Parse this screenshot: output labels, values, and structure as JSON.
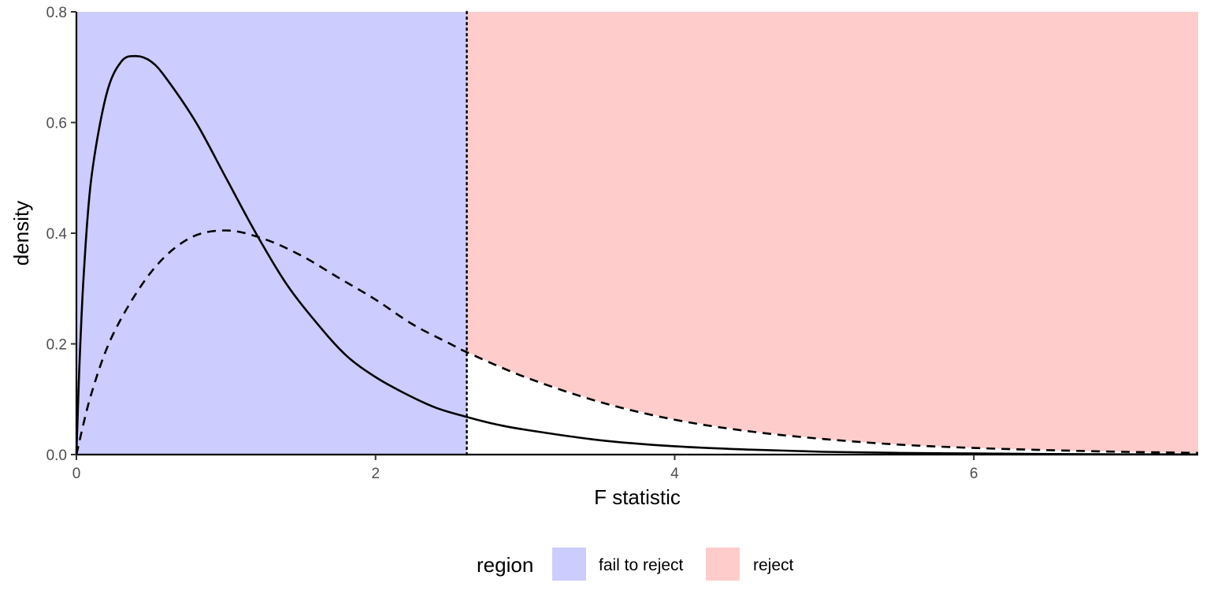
{
  "chart_data": {
    "type": "area",
    "xlabel": "F statistic",
    "ylabel": "density",
    "xlim": [
      0,
      7.5
    ],
    "ylim": [
      0,
      0.8
    ],
    "x_ticks": [
      0,
      2,
      4,
      6
    ],
    "y_ticks": [
      0.0,
      0.2,
      0.4,
      0.6,
      0.8
    ],
    "x_tick_labels": [
      "0",
      "2",
      "4",
      "6"
    ],
    "y_tick_labels": [
      "0.0",
      "0.2",
      "0.4",
      "0.6",
      "0.8"
    ],
    "grid": false,
    "critical_value": 2.61,
    "regions": [
      {
        "label": "fail to reject",
        "from": 0,
        "to": 2.61,
        "color": "#ccccff"
      },
      {
        "label": "reject",
        "from": 2.61,
        "to": 7.5,
        "color": "#ffcccc"
      }
    ],
    "series": [
      {
        "line_style": "solid",
        "x": [
          0,
          0.02,
          0.05,
          0.1,
          0.2,
          0.3,
          0.4,
          0.5,
          0.6,
          0.8,
          1.0,
          1.2,
          1.4,
          1.6,
          1.8,
          2.0,
          2.2,
          2.4,
          2.61,
          2.8,
          3.0,
          3.5,
          4.0,
          4.5,
          5.0,
          5.5,
          6.0,
          6.5,
          7.0,
          7.5
        ],
        "y": [
          0,
          0.16,
          0.33,
          0.5,
          0.65,
          0.71,
          0.72,
          0.71,
          0.68,
          0.6,
          0.5,
          0.4,
          0.31,
          0.24,
          0.18,
          0.14,
          0.11,
          0.085,
          0.068,
          0.055,
          0.045,
          0.026,
          0.015,
          0.009,
          0.005,
          0.003,
          0.002,
          0.001,
          0.0005,
          0.0002
        ]
      },
      {
        "line_style": "dashed",
        "x": [
          0,
          0.1,
          0.25,
          0.5,
          0.75,
          1.0,
          1.25,
          1.5,
          1.75,
          2.0,
          2.25,
          2.5,
          2.61,
          3.0,
          3.5,
          4.0,
          4.5,
          5.0,
          5.5,
          6.0,
          6.5,
          7.0,
          7.5
        ],
        "y": [
          0,
          0.11,
          0.22,
          0.33,
          0.39,
          0.405,
          0.39,
          0.36,
          0.32,
          0.28,
          0.235,
          0.2,
          0.185,
          0.14,
          0.095,
          0.063,
          0.042,
          0.028,
          0.018,
          0.012,
          0.008,
          0.005,
          0.003
        ]
      }
    ]
  },
  "legend": {
    "title": "region",
    "items": [
      {
        "label": "fail to reject",
        "color": "#ccccff"
      },
      {
        "label": "reject",
        "color": "#ffcccc"
      }
    ]
  }
}
